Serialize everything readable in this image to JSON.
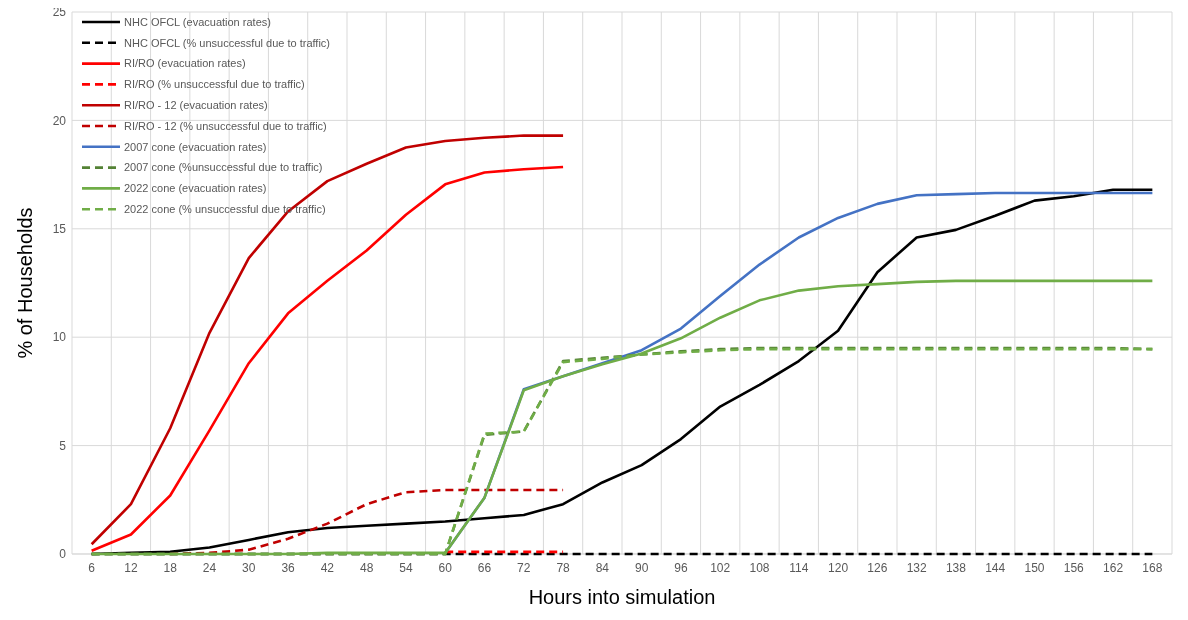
{
  "chart_data": {
    "type": "line",
    "xlabel": "Hours into simulation",
    "ylabel": "% of Households",
    "categories": [
      "6",
      "12",
      "18",
      "24",
      "30",
      "36",
      "42",
      "48",
      "54",
      "60",
      "66",
      "72",
      "78",
      "84",
      "90",
      "96",
      "102",
      "108",
      "114",
      "120",
      "126",
      "132",
      "138",
      "144",
      "150",
      "156",
      "162",
      "168"
    ],
    "ylim": [
      0,
      25
    ],
    "yticks": [
      0,
      5,
      10,
      15,
      20,
      25
    ],
    "grid": true,
    "legend": "top left",
    "series": [
      {
        "name": "NHC OFCL (evacuation rates)",
        "color": "#000000",
        "line_style": "solid",
        "values": [
          0,
          0.05,
          0.1,
          0.3,
          0.65,
          1.0,
          1.2,
          1.3,
          1.4,
          1.5,
          1.65,
          1.8,
          2.3,
          3.3,
          4.1,
          5.3,
          6.8,
          7.8,
          8.9,
          10.3,
          13.0,
          14.6,
          14.95,
          15.6,
          16.3,
          16.5,
          16.8,
          16.8
        ]
      },
      {
        "name": "NHC OFCL (% unsuccessful due to traffic)",
        "color": "#000000",
        "line_style": "dashed",
        "values": [
          0,
          0,
          0,
          0,
          0,
          0,
          0,
          0,
          0,
          0,
          0,
          0,
          0,
          0,
          0,
          0,
          0,
          0,
          0,
          0,
          0,
          0,
          0,
          0,
          0,
          0,
          0,
          0
        ]
      },
      {
        "name": "RI/RO (evacuation rates)",
        "color": "#ff0000",
        "line_style": "solid",
        "values": [
          0.15,
          0.9,
          2.7,
          5.7,
          8.8,
          11.1,
          12.6,
          14.0,
          15.65,
          17.05,
          17.6,
          17.75,
          17.85,
          null,
          null,
          null,
          null,
          null,
          null,
          null,
          null,
          null,
          null,
          null,
          null,
          null,
          null,
          null
        ]
      },
      {
        "name": "RI/RO (% unsuccessful due to traffic)",
        "color": "#ff0000",
        "line_style": "dashed",
        "values": [
          null,
          null,
          null,
          null,
          null,
          null,
          null,
          null,
          null,
          0.1,
          0.1,
          0.1,
          0.1,
          null,
          null,
          null,
          null,
          null,
          null,
          null,
          null,
          null,
          null,
          null,
          null,
          null,
          null,
          null
        ]
      },
      {
        "name": "RI/RO - 12 (evacuation rates)",
        "color": "#c00000",
        "line_style": "solid",
        "values": [
          0.45,
          2.3,
          5.8,
          10.2,
          13.65,
          15.8,
          17.2,
          18.0,
          18.75,
          19.05,
          19.2,
          19.3,
          19.3,
          null,
          null,
          null,
          null,
          null,
          null,
          null,
          null,
          null,
          null,
          null,
          null,
          null,
          null,
          null
        ]
      },
      {
        "name": "RI/RO - 12 (% unsuccessful due to traffic)",
        "color": "#c00000",
        "line_style": "dashed",
        "values": [
          null,
          null,
          0,
          0.05,
          0.2,
          0.7,
          1.4,
          2.3,
          2.85,
          2.95,
          2.95,
          2.95,
          2.95,
          null,
          null,
          null,
          null,
          null,
          null,
          null,
          null,
          null,
          null,
          null,
          null,
          null,
          null,
          null
        ]
      },
      {
        "name": "2007 cone (evacuation rates)",
        "color": "#4472c4",
        "line_style": "solid",
        "values": [
          null,
          null,
          null,
          null,
          null,
          null,
          null,
          null,
          null,
          0.05,
          2.6,
          7.6,
          8.2,
          8.8,
          9.4,
          10.4,
          11.9,
          13.35,
          14.6,
          15.5,
          16.15,
          16.55,
          16.6,
          16.65,
          16.65,
          16.65,
          16.65,
          16.65
        ]
      },
      {
        "name": "2007 cone (%unsuccessful due to traffic)",
        "color": "#548235",
        "line_style": "dashed",
        "values": [
          0,
          0,
          0,
          0,
          0,
          0,
          0,
          0,
          0,
          0,
          5.5,
          5.65,
          8.9,
          9.05,
          9.2,
          9.35,
          9.45,
          9.5,
          9.5,
          9.5,
          9.5,
          9.5,
          9.5,
          9.5,
          9.5,
          9.5,
          9.5,
          9.45
        ]
      },
      {
        "name": "2022 cone (evacuation rates)",
        "color": "#70ad47",
        "line_style": "solid",
        "values": [
          0,
          0,
          0,
          0,
          0,
          0,
          0.05,
          0.05,
          0.05,
          0.05,
          2.6,
          7.55,
          8.2,
          8.75,
          9.25,
          9.95,
          10.9,
          11.7,
          12.15,
          12.35,
          12.45,
          12.55,
          12.6,
          12.6,
          12.6,
          12.6,
          12.6,
          12.6
        ]
      },
      {
        "name": "2022 cone (% unsuccessful due to traffic)",
        "color": "#70ad47",
        "line_style": "dashed",
        "values": [
          0,
          0,
          0,
          0,
          0,
          0,
          0,
          0,
          0,
          0,
          5.55,
          5.65,
          8.85,
          9.0,
          9.2,
          9.3,
          9.4,
          9.45,
          9.45,
          9.45,
          9.45,
          9.45,
          9.45,
          9.45,
          9.45,
          9.45,
          9.45,
          9.45
        ]
      }
    ]
  }
}
